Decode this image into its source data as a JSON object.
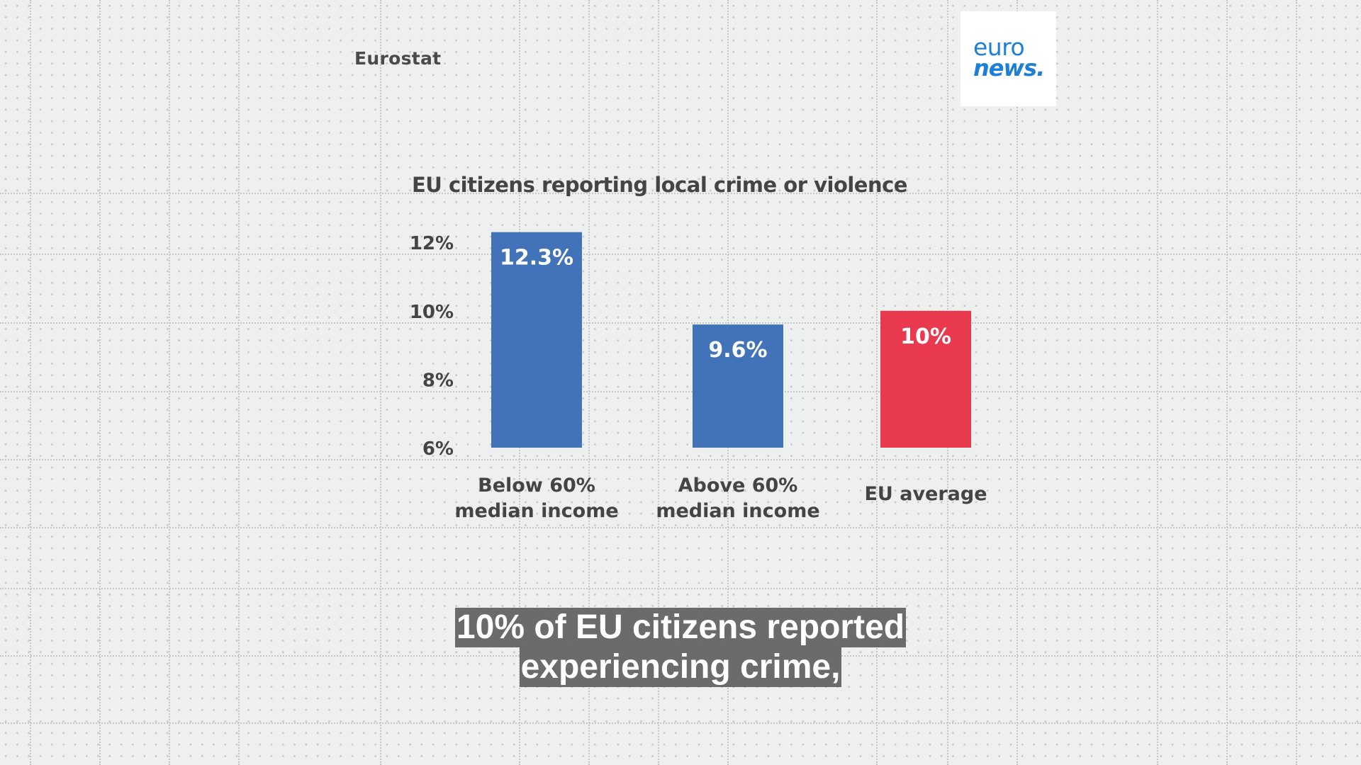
{
  "source_label": "Eurostat",
  "logo": {
    "line1": "euro",
    "line2": "news",
    "dot": "."
  },
  "colors": {
    "below": "#4273b8",
    "above": "#4273b8",
    "average": "#e8394f",
    "text": "#444444"
  },
  "chart_data": {
    "type": "bar",
    "title": "EU citizens reporting local crime or violence",
    "categories": [
      [
        "Below 60%",
        "median income"
      ],
      [
        "Above 60%",
        "median income"
      ],
      [
        "EU average"
      ]
    ],
    "values": [
      12.3,
      9.6,
      10
    ],
    "value_labels": [
      "12.3%",
      "9.6%",
      "10%"
    ],
    "bar_colors": [
      "#4273b8",
      "#4273b8",
      "#e8394f"
    ],
    "yticks": [
      6,
      8,
      10,
      12
    ],
    "ytick_labels": [
      "6%",
      "8%",
      "10%",
      "12%"
    ],
    "ylim": [
      6,
      12.3
    ],
    "grid": false
  },
  "caption": {
    "line1": "10% of EU citizens reported",
    "line2": "experiencing crime,"
  }
}
